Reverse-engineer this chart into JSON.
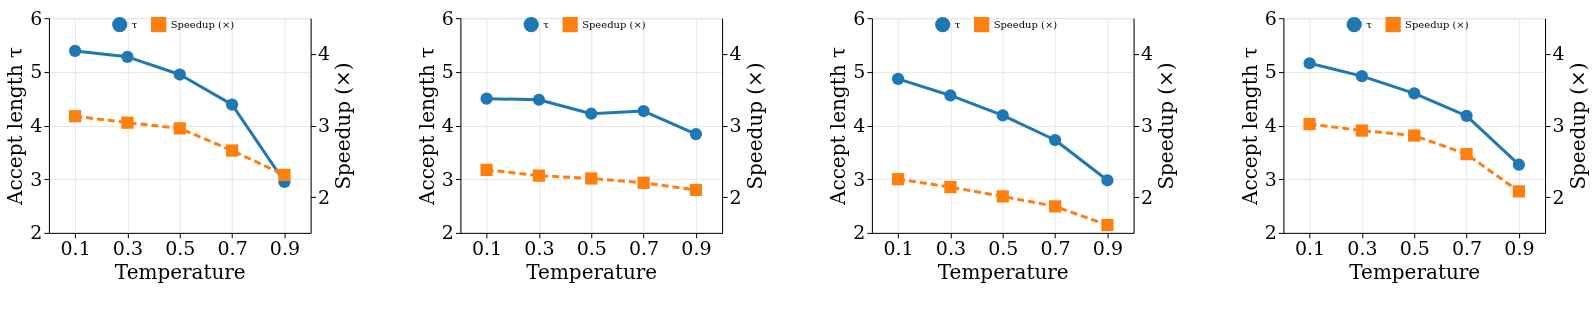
{
  "chart_data": [
    {
      "type": "line",
      "x": [
        0.1,
        0.3,
        0.5,
        0.7,
        0.9
      ],
      "xlabel": "Temperature",
      "ylabel": "Accept length τ",
      "y2label": "Speedup (×)",
      "xlim": [
        0,
        1
      ],
      "xticks": [
        0.1,
        0.3,
        0.5,
        0.7,
        0.9
      ],
      "ylim": [
        2,
        6
      ],
      "yticks": [
        2,
        3,
        4,
        5,
        6
      ],
      "y2lim": [
        1.5,
        4.5
      ],
      "y2ticks": [
        2,
        3,
        4
      ],
      "grid": true,
      "legend": "top",
      "series": [
        {
          "name": "τ",
          "color": "#1f77b4",
          "values": [
            5.39,
            5.28,
            4.95,
            4.39,
            2.95
          ],
          "marker": "circle",
          "line_style": "solid"
        },
        {
          "name": "Speedup (×)",
          "color": "#ff7f0e",
          "values": [
            3.13,
            3.04,
            2.96,
            2.65,
            2.31
          ],
          "marker": "square",
          "line_style": "dashed",
          "axis": "y2"
        }
      ]
    },
    {
      "type": "line",
      "x": [
        0.1,
        0.3,
        0.5,
        0.7,
        0.9
      ],
      "xlabel": "Temperature",
      "ylabel": "Accept length τ",
      "y2label": "Speedup (×)",
      "xlim": [
        0,
        1
      ],
      "xticks": [
        0.1,
        0.3,
        0.5,
        0.7,
        0.9
      ],
      "ylim": [
        2,
        6
      ],
      "yticks": [
        2,
        3,
        4,
        5,
        6
      ],
      "y2lim": [
        1.5,
        4.5
      ],
      "y2ticks": [
        2,
        3,
        4
      ],
      "grid": true,
      "legend": "top",
      "series": [
        {
          "name": "τ",
          "color": "#1f77b4",
          "values": [
            4.5,
            4.48,
            4.22,
            4.27,
            3.84
          ],
          "marker": "circle",
          "line_style": "solid"
        },
        {
          "name": "Speedup (×)",
          "color": "#ff7f0e",
          "values": [
            2.38,
            2.3,
            2.26,
            2.2,
            2.1
          ],
          "marker": "square",
          "line_style": "dashed",
          "axis": "y2"
        }
      ]
    },
    {
      "type": "line",
      "x": [
        0.1,
        0.3,
        0.5,
        0.7,
        0.9
      ],
      "xlabel": "Temperature",
      "ylabel": "Accept length τ",
      "y2label": "Speedup (×)",
      "xlim": [
        0,
        1
      ],
      "xticks": [
        0.1,
        0.3,
        0.5,
        0.7,
        0.9
      ],
      "ylim": [
        2,
        6
      ],
      "yticks": [
        2,
        3,
        4,
        5,
        6
      ],
      "y2lim": [
        1.5,
        4.5
      ],
      "y2ticks": [
        2,
        3,
        4
      ],
      "grid": true,
      "legend": "top",
      "series": [
        {
          "name": "τ",
          "color": "#1f77b4",
          "values": [
            4.87,
            4.56,
            4.19,
            3.73,
            2.98
          ],
          "marker": "circle",
          "line_style": "solid"
        },
        {
          "name": "Speedup (×)",
          "color": "#ff7f0e",
          "values": [
            2.25,
            2.14,
            2.01,
            1.87,
            1.61
          ],
          "marker": "square",
          "line_style": "dashed",
          "axis": "y2"
        }
      ]
    },
    {
      "type": "line",
      "x": [
        0.1,
        0.3,
        0.5,
        0.7,
        0.9
      ],
      "xlabel": "Temperature",
      "ylabel": "Accept length τ",
      "y2label": "Speedup (×)",
      "xlim": [
        0,
        1
      ],
      "xticks": [
        0.1,
        0.3,
        0.5,
        0.7,
        0.9
      ],
      "ylim": [
        2,
        6
      ],
      "yticks": [
        2,
        3,
        4,
        5,
        6
      ],
      "y2lim": [
        1.5,
        4.5
      ],
      "y2ticks": [
        2,
        3,
        4
      ],
      "grid": true,
      "legend": "top",
      "series": [
        {
          "name": "τ",
          "color": "#1f77b4",
          "values": [
            5.16,
            4.92,
            4.6,
            4.18,
            3.27
          ],
          "marker": "circle",
          "line_style": "solid"
        },
        {
          "name": "Speedup (×)",
          "color": "#ff7f0e",
          "values": [
            3.02,
            2.93,
            2.86,
            2.6,
            2.08
          ],
          "marker": "square",
          "line_style": "dashed",
          "axis": "y2"
        }
      ]
    }
  ]
}
